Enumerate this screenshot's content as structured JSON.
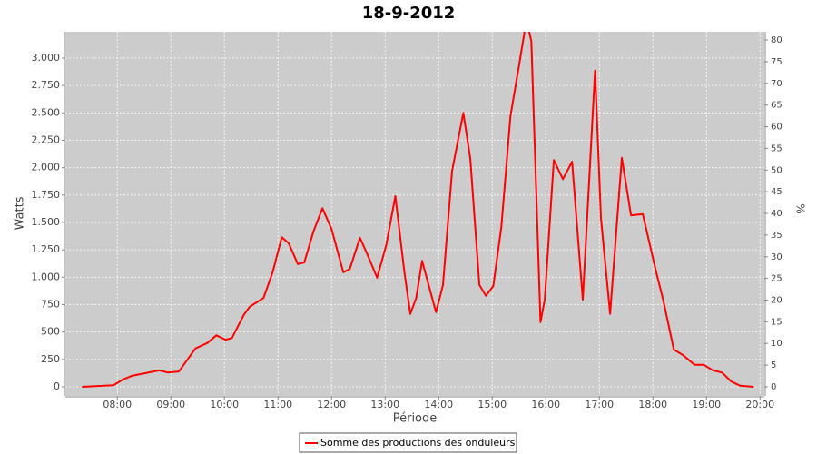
{
  "chart_data": {
    "type": "line",
    "title": "18-9-2012",
    "x_label": "Période",
    "y_label": "Watts",
    "y2_label": "%",
    "x": [
      7.34,
      7.93,
      8.1,
      8.27,
      8.53,
      8.78,
      8.95,
      9.15,
      9.46,
      9.68,
      9.85,
      10.02,
      10.14,
      10.36,
      10.47,
      10.73,
      10.9,
      11.07,
      11.2,
      11.37,
      11.49,
      11.66,
      11.83,
      12.0,
      12.22,
      12.34,
      12.53,
      12.68,
      12.85,
      13.02,
      13.19,
      13.36,
      13.47,
      13.58,
      13.69,
      13.81,
      13.95,
      14.08,
      14.25,
      14.46,
      14.59,
      14.76,
      14.88,
      15.02,
      15.17,
      15.34,
      15.51,
      15.64,
      15.73,
      15.9,
      15.98,
      16.15,
      16.32,
      16.49,
      16.69,
      16.92,
      17.03,
      17.2,
      17.42,
      17.59,
      17.81,
      18.05,
      18.19,
      18.39,
      18.56,
      18.78,
      18.95,
      19.12,
      19.29,
      19.46,
      19.63,
      19.88
    ],
    "series": [
      {
        "name": "Somme des productions des onduleurs",
        "color": "#ff0000",
        "values": [
          0,
          15,
          65,
          100,
          125,
          150,
          130,
          140,
          350,
          400,
          470,
          430,
          445,
          655,
          730,
          810,
          1045,
          1365,
          1310,
          1120,
          1135,
          1415,
          1630,
          1440,
          1045,
          1075,
          1360,
          1195,
          995,
          1290,
          1740,
          1045,
          665,
          810,
          1150,
          935,
          680,
          930,
          1970,
          2500,
          2080,
          930,
          830,
          920,
          1460,
          2470,
          2965,
          3350,
          3155,
          590,
          795,
          2070,
          1895,
          2055,
          795,
          2885,
          1540,
          665,
          2090,
          1565,
          1575,
          1070,
          795,
          340,
          290,
          200,
          200,
          150,
          130,
          50,
          10,
          0
        ]
      }
    ],
    "xlim": [
      7.03,
      20.08
    ],
    "xticks": [
      {
        "value": 8,
        "label": "08:00"
      },
      {
        "value": 9,
        "label": "09:00"
      },
      {
        "value": 10,
        "label": "10:00"
      },
      {
        "value": 11,
        "label": "11:00"
      },
      {
        "value": 12,
        "label": "12:00"
      },
      {
        "value": 13,
        "label": "13:00"
      },
      {
        "value": 14,
        "label": "14:00"
      },
      {
        "value": 15,
        "label": "15:00"
      },
      {
        "value": 16,
        "label": "16:00"
      },
      {
        "value": 17,
        "label": "17:00"
      },
      {
        "value": 18,
        "label": "18:00"
      },
      {
        "value": 19,
        "label": "19:00"
      },
      {
        "value": 20,
        "label": "20:00"
      }
    ],
    "ylim": [
      -83,
      3240
    ],
    "yticks": [
      0,
      250,
      500,
      750,
      {
        "value": 1000,
        "label": "1.000"
      },
      {
        "value": 1250,
        "label": "1.250"
      },
      {
        "value": 1500,
        "label": "1.500"
      },
      {
        "value": 1750,
        "label": "1.750"
      },
      {
        "value": 2000,
        "label": "2.000"
      },
      {
        "value": 2250,
        "label": "2.250"
      },
      {
        "value": 2500,
        "label": "2.500"
      },
      {
        "value": 2750,
        "label": "2.750"
      },
      {
        "value": 3000,
        "label": "3.000"
      }
    ],
    "y2lim": [
      -2.1,
      81.9
    ],
    "y2ticks": [
      0,
      5,
      10,
      15,
      20,
      25,
      30,
      35,
      40,
      45,
      50,
      55,
      60,
      65,
      70,
      75,
      80
    ],
    "grid": true,
    "legend": "bottom"
  }
}
